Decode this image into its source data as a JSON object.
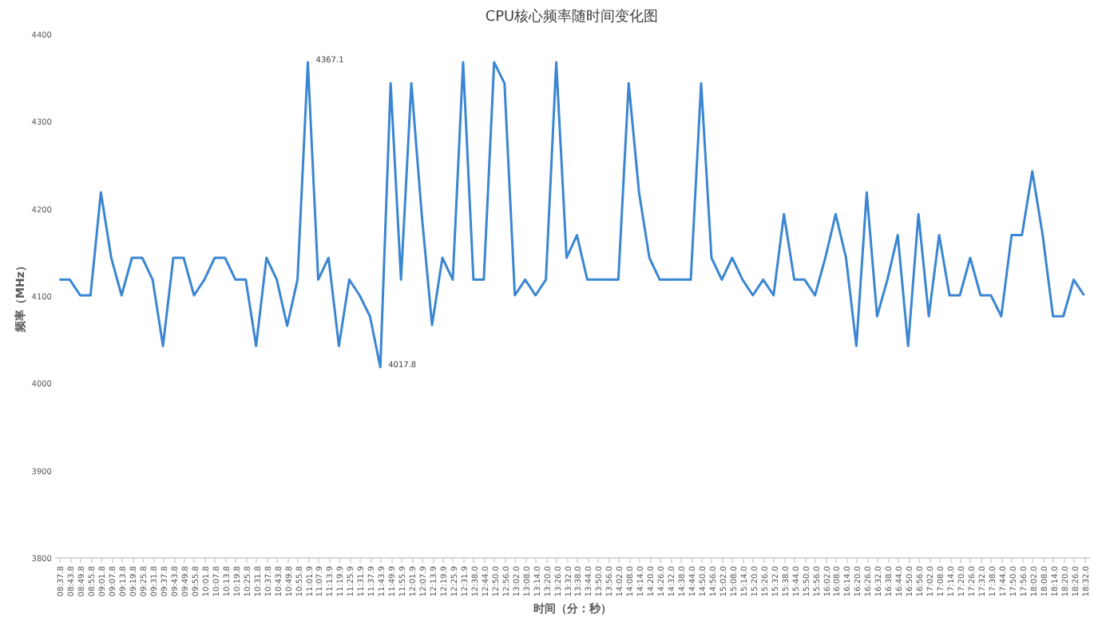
{
  "chart_data": {
    "type": "line",
    "title": "CPU核心频率随时间变化图",
    "xlabel": "时间（分：秒）",
    "ylabel": "频率（MHz）",
    "categories": [
      "08:37.8",
      "08:43.8",
      "08:49.8",
      "08:55.8",
      "09:01.8",
      "09:07.8",
      "09:13.8",
      "09:19.8",
      "09:25.8",
      "09:31.8",
      "09:37.8",
      "09:43.8",
      "09:49.8",
      "09:55.8",
      "10:01.8",
      "10:07.8",
      "10:13.8",
      "10:19.8",
      "10:25.8",
      "10:31.8",
      "10:37.8",
      "10:43.8",
      "10:49.8",
      "10:55.8",
      "11:01.9",
      "11:07.9",
      "11:13.9",
      "11:19.9",
      "11:25.9",
      "11:31.9",
      "11:37.9",
      "11:43.9",
      "11:49.9",
      "11:55.9",
      "12:01.9",
      "12:07.9",
      "12:13.9",
      "12:19.9",
      "12:25.9",
      "12:31.9",
      "12:38.0",
      "12:44.0",
      "12:50.0",
      "12:56.0",
      "13:02.0",
      "13:08.0",
      "13:14.0",
      "13:20.0",
      "13:26.0",
      "13:32.0",
      "13:38.0",
      "13:44.0",
      "13:50.0",
      "13:56.0",
      "14:02.0",
      "14:08.0",
      "14:14.0",
      "14:20.0",
      "14:26.0",
      "14:32.0",
      "14:38.0",
      "14:44.0",
      "14:50.0",
      "14:56.0",
      "15:02.0",
      "15:08.0",
      "15:14.0",
      "15:20.0",
      "15:26.0",
      "15:32.0",
      "15:38.0",
      "15:44.0",
      "15:50.0",
      "15:56.0",
      "16:02.0",
      "16:08.0",
      "16:14.0",
      "16:20.0",
      "16:26.0",
      "16:32.0",
      "16:38.0",
      "16:44.0",
      "16:50.0",
      "16:56.0",
      "17:02.0",
      "17:08.0",
      "17:14.0",
      "17:20.0",
      "17:26.0",
      "17:32.0",
      "17:38.0",
      "17:44.0",
      "17:50.0",
      "17:56.0",
      "18:02.0",
      "18:08.0",
      "18:14.0",
      "18:20.0",
      "18:26.0",
      "18:32.0"
    ],
    "series": [
      {
        "color": "#3b86d2",
        "values": [
          4118,
          4118,
          4100,
          4100,
          4218,
          4143,
          4100,
          4143,
          4143,
          4118,
          4042,
          4143,
          4143,
          4100,
          4118,
          4143,
          4143,
          4118,
          4118,
          4042,
          4143,
          4118,
          4065,
          4118,
          4367.1,
          4118,
          4143,
          4042,
          4118,
          4100,
          4076,
          4017.8,
          4343,
          4118,
          4343,
          4193,
          4066,
          4143,
          4118,
          4367,
          4118,
          4118,
          4367,
          4343,
          4100,
          4118,
          4100,
          4118,
          4367,
          4143,
          4169,
          4118,
          4118,
          4118,
          4118,
          4343,
          4218,
          4143,
          4118,
          4118,
          4118,
          4118,
          4343,
          4143,
          4118,
          4143,
          4118,
          4100,
          4118,
          4100,
          4193,
          4118,
          4118,
          4100,
          4143,
          4193,
          4143,
          4042,
          4218,
          4076,
          4118,
          4169,
          4042,
          4193,
          4076,
          4169,
          4100,
          4100,
          4143,
          4100,
          4100,
          4076,
          4169,
          4169,
          4242,
          4169,
          4076,
          4076,
          4118,
          4100
        ]
      }
    ],
    "ylim": [
      3800,
      4400
    ],
    "yticks": [
      3800,
      3900,
      4000,
      4100,
      4200,
      4300,
      4400
    ],
    "annotations": [
      {
        "text": "4367.1",
        "x": "11:01.9",
        "y": 4367.1
      },
      {
        "text": "4017.8",
        "x": "11:43.9",
        "y": 4017.8
      }
    ],
    "grid": false,
    "legend": false,
    "marker": "none",
    "line_style": "solid"
  }
}
